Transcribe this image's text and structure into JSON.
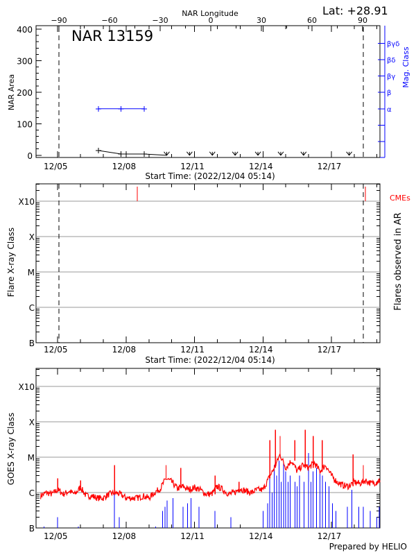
{
  "header": {
    "longitude_axis_label": "NAR Longitude",
    "latitude": "Lat: +28.91"
  },
  "colors": {
    "black": "#000000",
    "mag_class": "#0000ff",
    "cme": "#ff0000",
    "goes_long": "#ff0000",
    "goes_short": "#0000ff",
    "grid": "#999999"
  },
  "chart_data": [
    {
      "type": "line",
      "title": "NAR 13159",
      "ylabel": "NAR Area",
      "xlabel": "Start Time: (2022/12/04 05:14)",
      "x_unit": "day of December 2022",
      "xlim": [
        4.05,
        19.13
      ],
      "ylim": [
        -7,
        411
      ],
      "x_ticks": [
        {
          "value": 5,
          "label": "12/05"
        },
        {
          "value": 8,
          "label": "12/08"
        },
        {
          "value": 11,
          "label": "12/11"
        },
        {
          "value": 14,
          "label": "12/14"
        },
        {
          "value": 17,
          "label": "12/17"
        }
      ],
      "y_ticks": [
        0,
        100,
        200,
        300,
        400
      ],
      "top_axis": {
        "label": "NAR Longitude",
        "ticks": [
          -90,
          -60,
          -30,
          0,
          30,
          60,
          90
        ]
      },
      "dashed_lines": [
        5.06,
        18.4
      ],
      "area_series": [
        {
          "x": 6.79,
          "y": 15
        },
        {
          "x": 7.78,
          "y": 4
        },
        {
          "x": 8.79,
          "y": 4
        },
        {
          "x": 9.78,
          "y": 0,
          "marker": "arrow"
        },
        {
          "x": 10.78,
          "y": 0,
          "marker": "arrow"
        },
        {
          "x": 11.78,
          "y": 0,
          "marker": "arrow"
        },
        {
          "x": 12.78,
          "y": 0,
          "marker": "arrow"
        },
        {
          "x": 13.78,
          "y": 0,
          "marker": "arrow"
        },
        {
          "x": 14.78,
          "y": 0,
          "marker": "arrow"
        },
        {
          "x": 15.78,
          "y": 0,
          "marker": "arrow"
        },
        {
          "x": 17.78,
          "y": 0,
          "marker": "arrow"
        }
      ],
      "mag_class_axis": {
        "label": "Mag. Class",
        "classes": [
          "",
          "",
          "α",
          "β",
          "βγ",
          "βδ",
          "βγδ"
        ]
      },
      "mag_class_series": [
        {
          "x": 6.79,
          "class": "α"
        },
        {
          "x": 7.78,
          "class": "α"
        },
        {
          "x": 8.79,
          "class": "α"
        }
      ]
    },
    {
      "type": "scatter",
      "ylabel": "Flare X-ray Class",
      "right_label": "Flares observed in AR",
      "xlabel": "Start Time: (2022/12/04 05:14)",
      "xlim": [
        4.05,
        19.13
      ],
      "y_scale": "log",
      "y_ticks": [
        "B",
        "C",
        "M",
        "X",
        "X10"
      ],
      "grid": true,
      "x_ticks": [
        {
          "value": 5,
          "label": "12/05"
        },
        {
          "value": 8,
          "label": "12/08"
        },
        {
          "value": 11,
          "label": "12/11"
        },
        {
          "value": 14,
          "label": "12/14"
        },
        {
          "value": 17,
          "label": "12/17"
        }
      ],
      "dashed_lines": [
        5.06,
        18.4
      ],
      "flares": [],
      "cme_label": "CMEs",
      "cmes": [
        8.49,
        18.49
      ]
    },
    {
      "type": "line",
      "ylabel": "GOES X-ray Class",
      "xlim": [
        4.05,
        19.13
      ],
      "y_scale": "log",
      "y_ticks": [
        "B",
        "C",
        "M",
        "X",
        "X10"
      ],
      "grid": true,
      "x_ticks": [
        {
          "value": 5,
          "label": "12/05"
        },
        {
          "value": 8,
          "label": "12/08"
        },
        {
          "value": 11,
          "label": "12/11"
        },
        {
          "value": 14,
          "label": "12/14"
        },
        {
          "value": 17,
          "label": "12/17"
        }
      ],
      "series": [
        {
          "color": "#ff0000",
          "samples": [
            [
              4.25,
              "B8"
            ],
            [
              4.5,
              "C1.0"
            ],
            [
              4.75,
              "B9"
            ],
            [
              5.0,
              "C1.2"
            ],
            [
              5.25,
              "B9"
            ],
            [
              5.5,
              "C1.1"
            ],
            [
              5.75,
              "B9"
            ],
            [
              6.0,
              "C1.4"
            ],
            [
              6.25,
              "B8"
            ],
            [
              6.5,
              "B8"
            ],
            [
              6.75,
              "B7"
            ],
            [
              7.0,
              "B7"
            ],
            [
              7.25,
              "B9"
            ],
            [
              7.5,
              "C1.0"
            ],
            [
              7.75,
              "B9"
            ],
            [
              8.0,
              "B7"
            ],
            [
              8.25,
              "B7"
            ],
            [
              8.5,
              "B7"
            ],
            [
              8.75,
              "B8"
            ],
            [
              9.0,
              "B7"
            ],
            [
              9.25,
              "C1.0"
            ],
            [
              9.5,
              "C1.3"
            ],
            [
              9.75,
              "C2.5"
            ],
            [
              10.0,
              "C2.0"
            ],
            [
              10.25,
              "C1.3"
            ],
            [
              10.5,
              "C1.5"
            ],
            [
              10.75,
              "C1.2"
            ],
            [
              11.0,
              "C1.4"
            ],
            [
              11.25,
              "C1.2"
            ],
            [
              11.5,
              "B9"
            ],
            [
              11.75,
              "B9"
            ],
            [
              12.0,
              "C1.5"
            ],
            [
              12.25,
              "C1.2"
            ],
            [
              12.5,
              "B9"
            ],
            [
              12.75,
              "C1.0"
            ],
            [
              13.0,
              "C1.3"
            ],
            [
              13.25,
              "C1.1"
            ],
            [
              13.5,
              "C1.0"
            ],
            [
              13.75,
              "C1.2"
            ],
            [
              14.0,
              "C1.2"
            ],
            [
              14.25,
              "C2.5"
            ],
            [
              14.5,
              "C5"
            ],
            [
              14.75,
              "M1.2"
            ],
            [
              15.0,
              "C5"
            ],
            [
              15.25,
              "C8"
            ],
            [
              15.5,
              "C4"
            ],
            [
              15.75,
              "C6"
            ],
            [
              16.0,
              "C5"
            ],
            [
              16.25,
              "C7"
            ],
            [
              16.5,
              "C4"
            ],
            [
              16.75,
              "C6"
            ],
            [
              17.0,
              "C3"
            ],
            [
              17.25,
              "C2"
            ],
            [
              17.5,
              "C1.6"
            ],
            [
              17.75,
              "C1.5"
            ],
            [
              18.0,
              "C2"
            ],
            [
              18.25,
              "C1.8"
            ],
            [
              18.5,
              "C2.2"
            ],
            [
              18.75,
              "C1.8"
            ],
            [
              19.0,
              "C2.0"
            ],
            [
              19.13,
              "C2.2"
            ]
          ],
          "peaks": [
            [
              5.0,
              "C2.5"
            ],
            [
              6.0,
              "C2.2"
            ],
            [
              7.49,
              "C6"
            ],
            [
              9.75,
              "C6"
            ],
            [
              10.4,
              "C5"
            ],
            [
              11.9,
              "C3"
            ],
            [
              12.95,
              "C2"
            ],
            [
              14.3,
              "M3"
            ],
            [
              14.55,
              "M6"
            ],
            [
              14.75,
              "M4"
            ],
            [
              15.4,
              "M3"
            ],
            [
              15.85,
              "M6"
            ],
            [
              16.2,
              "M4"
            ],
            [
              16.6,
              "M3"
            ],
            [
              17.95,
              "M1.2"
            ],
            [
              18.4,
              "C6"
            ]
          ]
        },
        {
          "color": "#0000ff",
          "spikes": [
            [
              4.4,
              "B1.1"
            ],
            [
              5.0,
              "B2"
            ],
            [
              5.9,
              "B1.1"
            ],
            [
              7.49,
              "C1"
            ],
            [
              7.7,
              "B2"
            ],
            [
              9.3,
              "B1.1"
            ],
            [
              9.6,
              "B3"
            ],
            [
              9.7,
              "B4"
            ],
            [
              9.8,
              "B6"
            ],
            [
              10.05,
              "B7"
            ],
            [
              10.5,
              "B4"
            ],
            [
              10.7,
              "B5"
            ],
            [
              10.85,
              "B7"
            ],
            [
              11.2,
              "B4"
            ],
            [
              11.9,
              "B3"
            ],
            [
              12.6,
              "B2"
            ],
            [
              14.0,
              "B3"
            ],
            [
              14.2,
              "B5"
            ],
            [
              14.3,
              "C3"
            ],
            [
              14.4,
              "C1"
            ],
            [
              14.5,
              "C6"
            ],
            [
              14.6,
              "C3"
            ],
            [
              14.7,
              "C8"
            ],
            [
              14.8,
              "C2"
            ],
            [
              14.9,
              "C7"
            ],
            [
              15.0,
              "C4"
            ],
            [
              15.1,
              "C2"
            ],
            [
              15.2,
              "C3"
            ],
            [
              15.4,
              "C2"
            ],
            [
              15.5,
              "C1.5"
            ],
            [
              15.6,
              "C3"
            ],
            [
              15.8,
              "C2"
            ],
            [
              16.0,
              "M1.3"
            ],
            [
              16.1,
              "C2"
            ],
            [
              16.2,
              "C4"
            ],
            [
              16.35,
              "C5"
            ],
            [
              16.5,
              "C4"
            ],
            [
              16.6,
              "C3"
            ],
            [
              16.75,
              "C2"
            ],
            [
              16.9,
              "C1.5"
            ],
            [
              17.05,
              "B5"
            ],
            [
              17.2,
              "B3"
            ],
            [
              17.7,
              "B4"
            ],
            [
              17.9,
              "C1.2"
            ],
            [
              18.2,
              "B4"
            ],
            [
              18.4,
              "B4"
            ],
            [
              18.7,
              "B3"
            ],
            [
              19.0,
              "B2"
            ],
            [
              19.1,
              "B4"
            ]
          ]
        }
      ]
    }
  ],
  "footer": {
    "credit": "Prepared by HELIO"
  }
}
